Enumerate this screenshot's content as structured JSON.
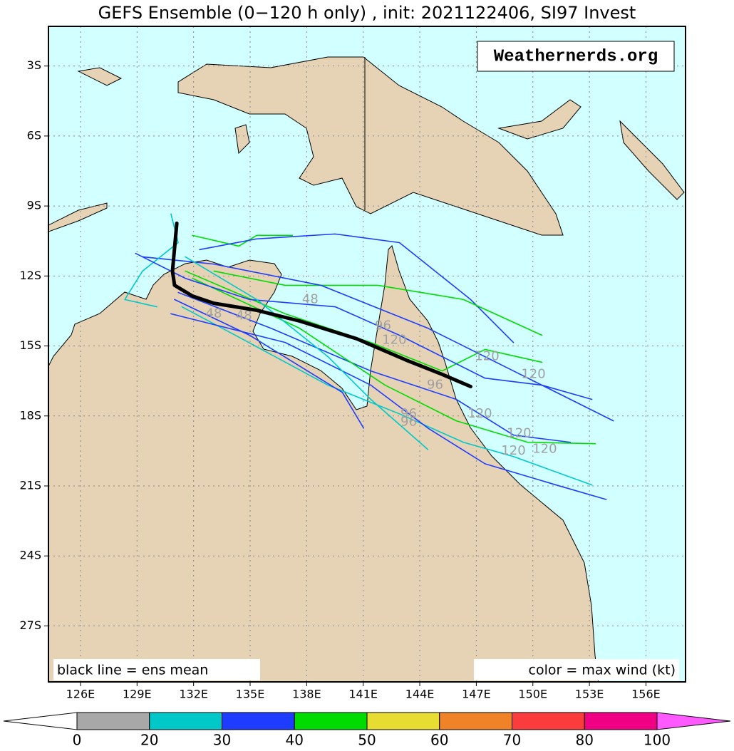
{
  "title": "GEFS Ensemble (0−120 h only) , init: 2021122406, SI97 Invest",
  "watermark": "Weathernerds.org",
  "note_left": "black line = ens mean",
  "note_right": "color = max wind (kt)",
  "map": {
    "xlim": [
      124.3,
      158.1
    ],
    "ylim": [
      -29.4,
      -1.3
    ],
    "xticks": [
      {
        "value": 126,
        "label": "126E"
      },
      {
        "value": 129,
        "label": "129E"
      },
      {
        "value": 132,
        "label": "132E"
      },
      {
        "value": 135,
        "label": "135E"
      },
      {
        "value": 138,
        "label": "138E"
      },
      {
        "value": 141,
        "label": "141E"
      },
      {
        "value": 144,
        "label": "144E"
      },
      {
        "value": 147,
        "label": "147E"
      },
      {
        "value": 150,
        "label": "150E"
      },
      {
        "value": 153,
        "label": "153E"
      },
      {
        "value": 156,
        "label": "156E"
      }
    ],
    "yticks": [
      {
        "value": -3,
        "label": "3S"
      },
      {
        "value": -6,
        "label": "6S"
      },
      {
        "value": -9,
        "label": "9S"
      },
      {
        "value": -12,
        "label": "12S"
      },
      {
        "value": -15,
        "label": "15S"
      },
      {
        "value": -18,
        "label": "18S"
      },
      {
        "value": -21,
        "label": "21S"
      },
      {
        "value": -24,
        "label": "24S"
      },
      {
        "value": -27,
        "label": "27S"
      }
    ],
    "grid": true,
    "tracks": [
      {
        "color": "#00dc00",
        "lon": [
          131.94,
          134.4,
          135.35,
          137.24
        ],
        "lat": [
          -10.26,
          -10.72,
          -10.26,
          -10.26
        ]
      },
      {
        "color": "#1e3cff",
        "lon": [
          132.32,
          135.35,
          139.51,
          142.92,
          146.7,
          148.97
        ],
        "lat": [
          -10.87,
          -10.41,
          -10.2,
          -10.57,
          -13.01,
          -14.85
        ]
      },
      {
        "color": "#00dc00",
        "lon": [
          133.08,
          136.86,
          141.78,
          146.32,
          150.48
        ],
        "lat": [
          -11.79,
          -12.4,
          -12.4,
          -13.01,
          -14.54
        ]
      },
      {
        "color": "#00dc00",
        "lon": [
          131.56,
          136.86,
          141.4,
          145.19,
          147.46,
          150.48
        ],
        "lat": [
          -11.79,
          -13.62,
          -14.85,
          -16.07,
          -15.15,
          -15.7
        ]
      },
      {
        "color": "#1e3cff",
        "lon": [
          131.19,
          136.1,
          141.4,
          145.94,
          148.97,
          151.99
        ],
        "lat": [
          -12.71,
          -14.24,
          -16.07,
          -17.29,
          -18.82,
          -19.13
        ]
      },
      {
        "color": "#00c8c8",
        "lon": [
          131.38,
          134.21,
          139.13,
          142.92,
          146.32,
          148.97,
          153.13
        ],
        "lat": [
          -13.32,
          -14.54,
          -16.68,
          -17.91,
          -19.13,
          -19.74,
          -20.96
        ]
      },
      {
        "color": "#1e3cff",
        "lon": [
          130.99,
          134.97,
          139.89,
          141.02
        ],
        "lat": [
          -13.01,
          -14.54,
          -16.99,
          -18.52
        ]
      },
      {
        "color": "#1e3cff",
        "lon": [
          130.8,
          136.86,
          141.4,
          144.43,
          147.46,
          151.24,
          153.89
        ],
        "lat": [
          -13.62,
          -14.85,
          -16.68,
          -18.52,
          -20.05,
          -20.96,
          -21.58
        ]
      },
      {
        "color": "#00dc00",
        "lon": [
          131.94,
          137.62,
          142.16,
          145.94,
          149.73,
          153.32
        ],
        "lat": [
          -12.1,
          -14.24,
          -16.68,
          -18.21,
          -19.13,
          -19.19
        ]
      },
      {
        "color": "#1e3cff",
        "lon": [
          129.29,
          133.08,
          138.75,
          144.43,
          148.97,
          154.27
        ],
        "lat": [
          -11.18,
          -11.49,
          -12.4,
          -14.24,
          -16.07,
          -18.21
        ]
      },
      {
        "color": "#00c8c8",
        "lon": [
          130.8,
          131.18,
          129.29,
          128.35,
          130.05
        ],
        "lat": [
          -9.34,
          -10.57,
          -11.79,
          -13.01,
          -13.32
        ]
      },
      {
        "color": "#1e3cff",
        "lon": [
          128.92,
          131.56,
          134.97,
          139.51,
          142.92,
          147.46,
          150.48,
          153.13
        ],
        "lat": [
          -11.03,
          -12.1,
          -13.01,
          -13.32,
          -14.54,
          -16.38,
          -16.68,
          -17.29
        ]
      },
      {
        "color": "#00c8c8",
        "lon": [
          131.56,
          135.35,
          139.13,
          141.4,
          144.43
        ],
        "lat": [
          -11.18,
          -13.01,
          -15.46,
          -17.29,
          -19.44
        ]
      }
    ],
    "mean": {
      "color": "#000000",
      "lon": [
        131.11,
        130.88,
        130.99,
        131.94,
        133.07,
        135.35,
        137.62,
        140.65,
        143.29,
        145.19,
        146.7
      ],
      "lat": [
        -9.74,
        -11.79,
        -12.4,
        -12.86,
        -13.17,
        -13.47,
        -13.93,
        -14.69,
        -15.61,
        -16.22,
        -16.74
      ]
    },
    "lead_labels": [
      {
        "label": "48",
        "lon": 133.07,
        "lat": -13.62
      },
      {
        "label": "48",
        "lon": 134.67,
        "lat": -13.72
      },
      {
        "label": "48",
        "lon": 138.19,
        "lat": -13.01
      },
      {
        "label": "96",
        "lon": 142.05,
        "lat": -14.14
      },
      {
        "label": "120",
        "lon": 142.65,
        "lat": -14.76
      },
      {
        "label": "96",
        "lon": 144.81,
        "lat": -16.68
      },
      {
        "label": "96",
        "lon": 143.41,
        "lat": -17.91
      },
      {
        "label": "96",
        "lon": 143.41,
        "lat": -18.27
      },
      {
        "label": "120",
        "lon": 147.57,
        "lat": -15.46
      },
      {
        "label": "120",
        "lon": 150.03,
        "lat": -16.22
      },
      {
        "label": "120",
        "lon": 147.19,
        "lat": -17.91
      },
      {
        "label": "120",
        "lon": 149.27,
        "lat": -18.76
      },
      {
        "label": "120",
        "lon": 148.97,
        "lat": -19.5
      },
      {
        "label": "120",
        "lon": 150.63,
        "lat": -19.43
      }
    ]
  },
  "colorbar": {
    "bounds": [
      0,
      20,
      30,
      40,
      50,
      60,
      70,
      80,
      100
    ],
    "colors": [
      "#ffffff",
      "#a8a8a8",
      "#00c8c8",
      "#1e3cff",
      "#00dc00",
      "#e6dc32",
      "#f08228",
      "#fa3c3c",
      "#f00082",
      "#ff5aff"
    ]
  }
}
